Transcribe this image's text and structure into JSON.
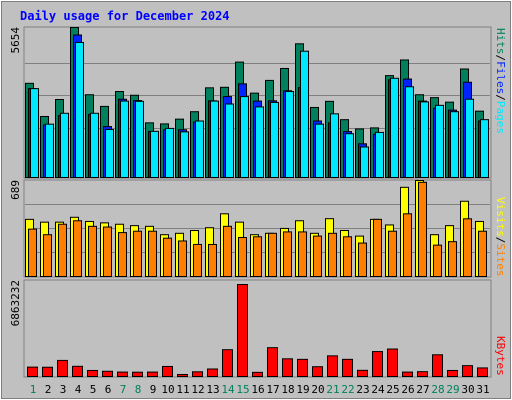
{
  "chart_data": [
    {
      "type": "bar",
      "title": "Daily usage for December 2024",
      "ymax_label": "5654",
      "ylim": [
        0,
        5654
      ],
      "categories": [
        "1",
        "2",
        "3",
        "4",
        "5",
        "6",
        "7",
        "8",
        "9",
        "10",
        "11",
        "12",
        "13",
        "14",
        "15",
        "16",
        "17",
        "18",
        "19",
        "20",
        "21",
        "22",
        "23",
        "24",
        "25",
        "26",
        "27",
        "28",
        "29",
        "30",
        "31"
      ],
      "weekend_days": [
        "1",
        "7",
        "8",
        "14",
        "15",
        "21",
        "22",
        "28",
        "29"
      ],
      "legend": [
        "Pages",
        "Files",
        "Hits"
      ],
      "series": [
        {
          "name": "Hits",
          "color": "#00805c",
          "values": [
            3550,
            2300,
            2940,
            5654,
            3120,
            2680,
            3240,
            3100,
            2060,
            2020,
            2200,
            2480,
            3380,
            3400,
            4350,
            3180,
            3660,
            4110,
            5040,
            2640,
            2870,
            2180,
            1830,
            1870,
            3840,
            4430,
            3120,
            3010,
            2840,
            4090,
            2500
          ]
        },
        {
          "name": "Files",
          "color": "#0024ff",
          "values": [
            3350,
            1980,
            2330,
            5370,
            2380,
            1920,
            2950,
            2900,
            1730,
            1800,
            1800,
            2090,
            2890,
            3050,
            3530,
            2880,
            2890,
            3270,
            3390,
            2130,
            2060,
            1730,
            1270,
            1630,
            3680,
            3710,
            2880,
            2610,
            2540,
            3590,
            2130
          ]
        },
        {
          "name": "Pages",
          "color": "#00e8ff",
          "values": [
            3350,
            2010,
            2420,
            5090,
            2420,
            1810,
            2880,
            2870,
            1740,
            1850,
            1720,
            2130,
            2880,
            2770,
            3050,
            2660,
            2830,
            3240,
            4760,
            2010,
            2400,
            1650,
            1150,
            1700,
            3740,
            3420,
            2850,
            2720,
            2480,
            2950,
            2180
          ]
        }
      ]
    },
    {
      "type": "bar",
      "ymax_label": "689",
      "ylim": [
        0,
        689
      ],
      "legend": [
        "Sites",
        "Visits"
      ],
      "series": [
        {
          "name": "Visits",
          "color": "#ffff00",
          "values": [
            410,
            390,
            390,
            425,
            395,
            385,
            375,
            365,
            360,
            300,
            310,
            330,
            350,
            450,
            390,
            300,
            310,
            345,
            400,
            310,
            415,
            330,
            290,
            410,
            370,
            640,
            689,
            300,
            365,
            540,
            395
          ]
        },
        {
          "name": "Sites",
          "color": "#ff8000",
          "values": [
            340,
            300,
            375,
            400,
            360,
            355,
            315,
            325,
            325,
            275,
            255,
            230,
            230,
            360,
            280,
            285,
            310,
            320,
            320,
            290,
            310,
            285,
            240,
            410,
            325,
            450,
            676,
            225,
            250,
            414,
            325
          ]
        }
      ]
    },
    {
      "type": "bar",
      "ymax_label": "6863232",
      "ylim": [
        0,
        6863232
      ],
      "legend": [
        "KBytes"
      ],
      "series": [
        {
          "name": "KBytes",
          "color": "#ff0000",
          "values": [
            700000,
            690000,
            1200000,
            760000,
            450000,
            390000,
            330000,
            320000,
            330000,
            750000,
            150000,
            350000,
            560000,
            2000000,
            6863232,
            310000,
            2150000,
            1320000,
            1280000,
            730000,
            1540000,
            1280000,
            460000,
            1860000,
            2050000,
            330000,
            360000,
            1620000,
            450000,
            810000,
            640000
          ]
        }
      ]
    }
  ]
}
